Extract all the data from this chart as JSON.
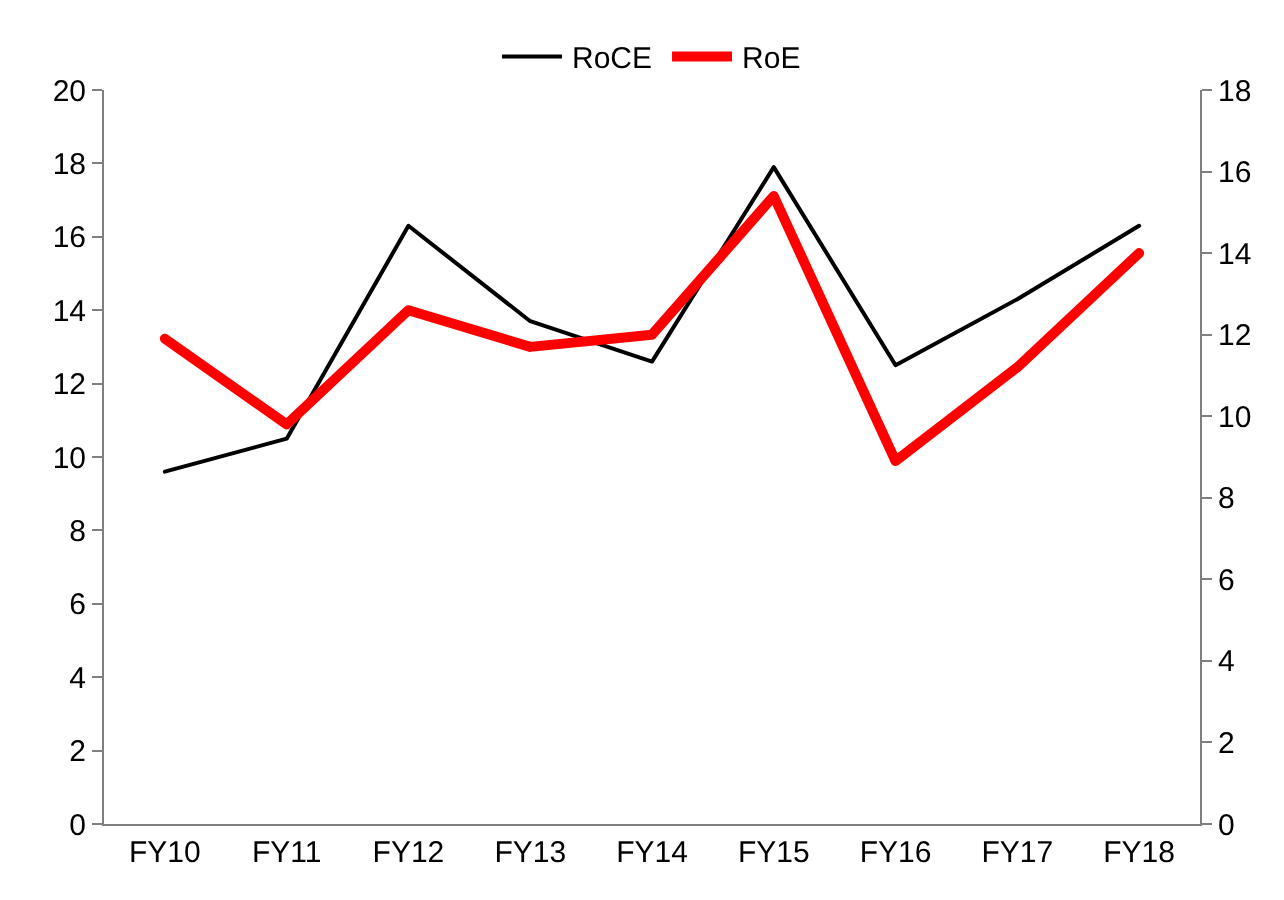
{
  "chart_data": {
    "type": "line",
    "categories": [
      "FY10",
      "FY11",
      "FY12",
      "FY13",
      "FY14",
      "FY15",
      "FY16",
      "FY17",
      "FY18"
    ],
    "series": [
      {
        "name": "RoCE",
        "color": "#000000",
        "values": [
          9.6,
          10.5,
          16.3,
          13.7,
          12.6,
          17.9,
          12.5,
          14.3,
          16.3
        ]
      },
      {
        "name": "RoE",
        "color": "#ff0000",
        "axis": "y2",
        "values": [
          11.9,
          9.8,
          12.6,
          11.7,
          12.0,
          15.4,
          8.9,
          11.2,
          14.0
        ]
      }
    ],
    "ylim": [
      0,
      20
    ],
    "yticks": [
      0,
      2,
      4,
      6,
      8,
      10,
      12,
      14,
      16,
      18,
      20
    ],
    "y2lim": [
      0,
      18
    ],
    "y2ticks": [
      0,
      2,
      4,
      6,
      8,
      10,
      12,
      14,
      16,
      18
    ],
    "grid": false,
    "legend": "top",
    "marker": "none",
    "line_style": "solid"
  }
}
